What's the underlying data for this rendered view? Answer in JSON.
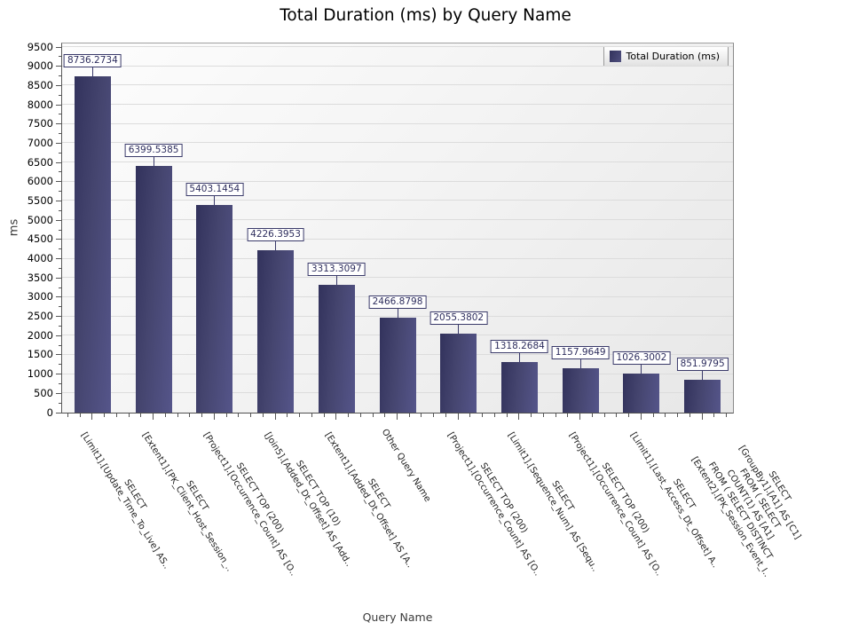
{
  "title": "Total Duration (ms) by Query Name",
  "legend": {
    "label": "Total Duration (ms)"
  },
  "axes": {
    "y_title": "ms",
    "x_title": "Query Name"
  },
  "colors": {
    "bar_dark": "#32325c",
    "bar_mid": "#45456f",
    "bar_light": "#55558a",
    "value_box_border": "#3a3a6a",
    "value_box_text": "#2e2e5e",
    "grid_line": "#dcdcdc"
  },
  "chart_data": {
    "type": "bar",
    "title": "Total Duration (ms) by Query Name",
    "xlabel": "Query Name",
    "ylabel": "ms",
    "ylim": [
      0,
      9500
    ],
    "y_tick_step": 500,
    "grid": "horizontal",
    "legend": [
      "Total Duration (ms)"
    ],
    "legend_position": "top-right",
    "categories": [
      "SELECT\n[Limit1].[Update_Time_To_Live] AS..",
      "SELECT\n[Extent1].[PK_Client_Host_Session_..",
      "SELECT TOP (200)\n[Project1].[Occurrence_Count] AS [O..",
      "SELECT TOP (10)\n[Join5].[Added_Dt_Offset] AS [Add..",
      "SELECT\n[Extent1].[Added_Dt_Offset] AS [A..",
      "Other Query Name",
      "SELECT TOP (200)\n[Project1].[Occurrence_Count] AS [O..",
      "SELECT\n[Limit1].[Sequence_Num] AS [Sequ..",
      "SELECT TOP (200)\n[Project1].[Occurrence_Count] AS [O..",
      "SELECT\n[Limit1].[Last_Access_Dt_Offset] A..",
      "SELECT\n[GroupBy1].[A1] AS [C1]\nFROM ( SELECT\nCOUNT(1) AS [A1]\nFROM ( SELECT DISTINCT\n[Extent2].[PK_Session_Event_I.."
    ],
    "values": [
      8736.2734,
      6399.5385,
      5403.1454,
      4226.3953,
      3313.3097,
      2466.8798,
      2055.3802,
      1318.2684,
      1157.9649,
      1026.3002,
      851.9795
    ],
    "value_labels": [
      "8736.2734",
      "6399.5385",
      "5403.1454",
      "4226.3953",
      "3313.3097",
      "2466.8798",
      "2055.3802",
      "1318.2684",
      "1157.9649",
      "1026.3002",
      "851.9795"
    ]
  }
}
